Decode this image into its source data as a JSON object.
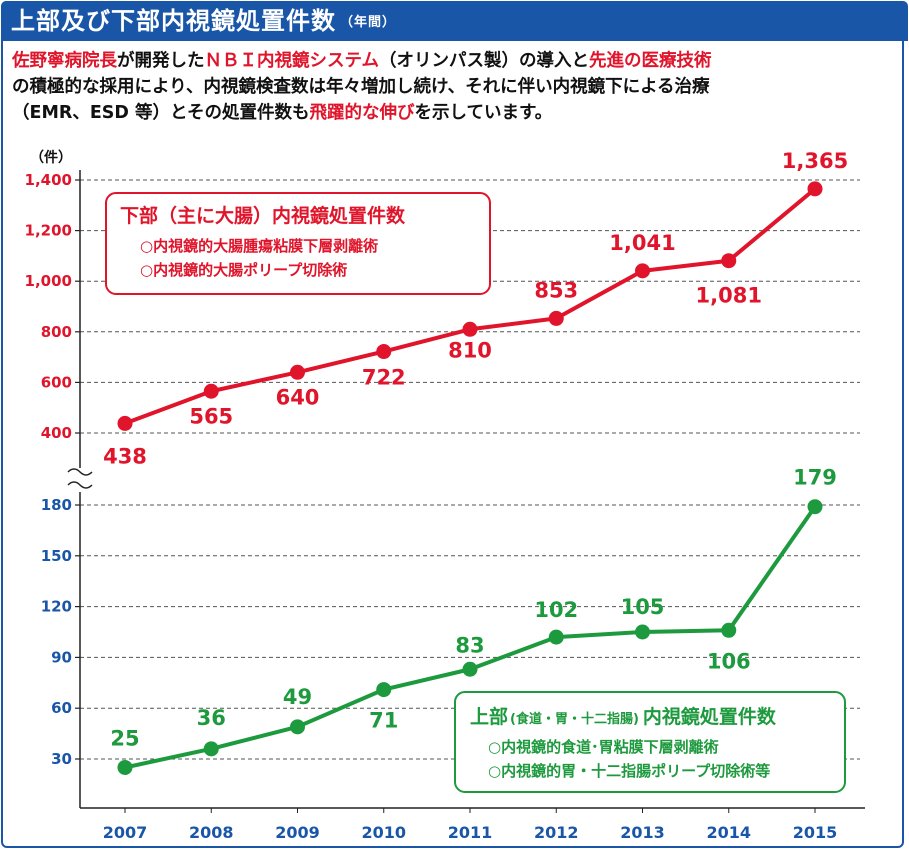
{
  "header": {
    "title": "上部及び下部内視鏡処置件数",
    "subtitle": "（年間）"
  },
  "description": [
    [
      {
        "t": "佐野寧病院長",
        "red": true
      },
      {
        "t": "が開発した",
        "red": false
      },
      {
        "t": "ＮＢＩ内視鏡システム",
        "red": true
      },
      {
        "t": "（オリンパス製）の導入と",
        "red": false
      },
      {
        "t": "先進の医療技術",
        "red": true
      }
    ],
    [
      {
        "t": "の積極的な採用により、内視鏡検査数は年々増加し続け、それに伴い内視鏡下による治療",
        "red": false
      }
    ],
    [
      {
        "t": "（EMR、ESD 等）とその処置件数も",
        "red": false
      },
      {
        "t": "飛躍的な伸び",
        "red": true
      },
      {
        "t": "を示しています。",
        "red": false
      }
    ]
  ],
  "colors": {
    "header": "#1a56a8",
    "lower_series": "#e0142a",
    "upper_series": "#1e9a3e",
    "tick_labels": "#1a56a8",
    "grid": "#555555"
  },
  "chart_data": {
    "type": "line",
    "unit_label": "（件）",
    "categories": [
      "2007",
      "2008",
      "2009",
      "2010",
      "2011",
      "2012",
      "2013",
      "2014",
      "2015"
    ],
    "axis_break": true,
    "grid": "horizontal dashed",
    "panels": [
      {
        "id": "lower",
        "yticks": [
          400,
          600,
          800,
          "1,000",
          "1,200",
          "1,400"
        ],
        "ylim": [
          360,
          1420
        ],
        "series": [
          {
            "values": [
              438,
              565,
              640,
              722,
              810,
              853,
              1041,
              1081,
              1365
            ],
            "labels": [
              "438",
              "565",
              "640",
              "722",
              "810",
              "853",
              "1,041",
              "1,081",
              "1,365"
            ]
          }
        ],
        "legend_box": {
          "title": "下部（主に大腸）内視鏡処置件数",
          "items": [
            "○内視鏡的大腸腫瘍粘膜下層剥離術",
            "○内視鏡的大腸ポリープ切除術"
          ],
          "placement": "top-left"
        }
      },
      {
        "id": "upper",
        "yticks": [
          30,
          60,
          90,
          120,
          150,
          180
        ],
        "ylim": [
          10,
          195
        ],
        "series": [
          {
            "values": [
              25,
              36,
              49,
              71,
              83,
              102,
              105,
              106,
              179
            ],
            "labels": [
              "25",
              "36",
              "49",
              "71",
              "83",
              "102",
              "105",
              "106",
              "179"
            ]
          }
        ],
        "legend_box": {
          "title_main": "上部",
          "title_small": "(食道・胃・十二指腸)",
          "title_end": "内視鏡処置件数",
          "items": [
            "○内視鏡的食道･胃粘膜下層剥離術",
            "○内視鏡的胃・十二指腸ポリープ切除術等"
          ],
          "placement": "bottom-right"
        }
      }
    ]
  }
}
